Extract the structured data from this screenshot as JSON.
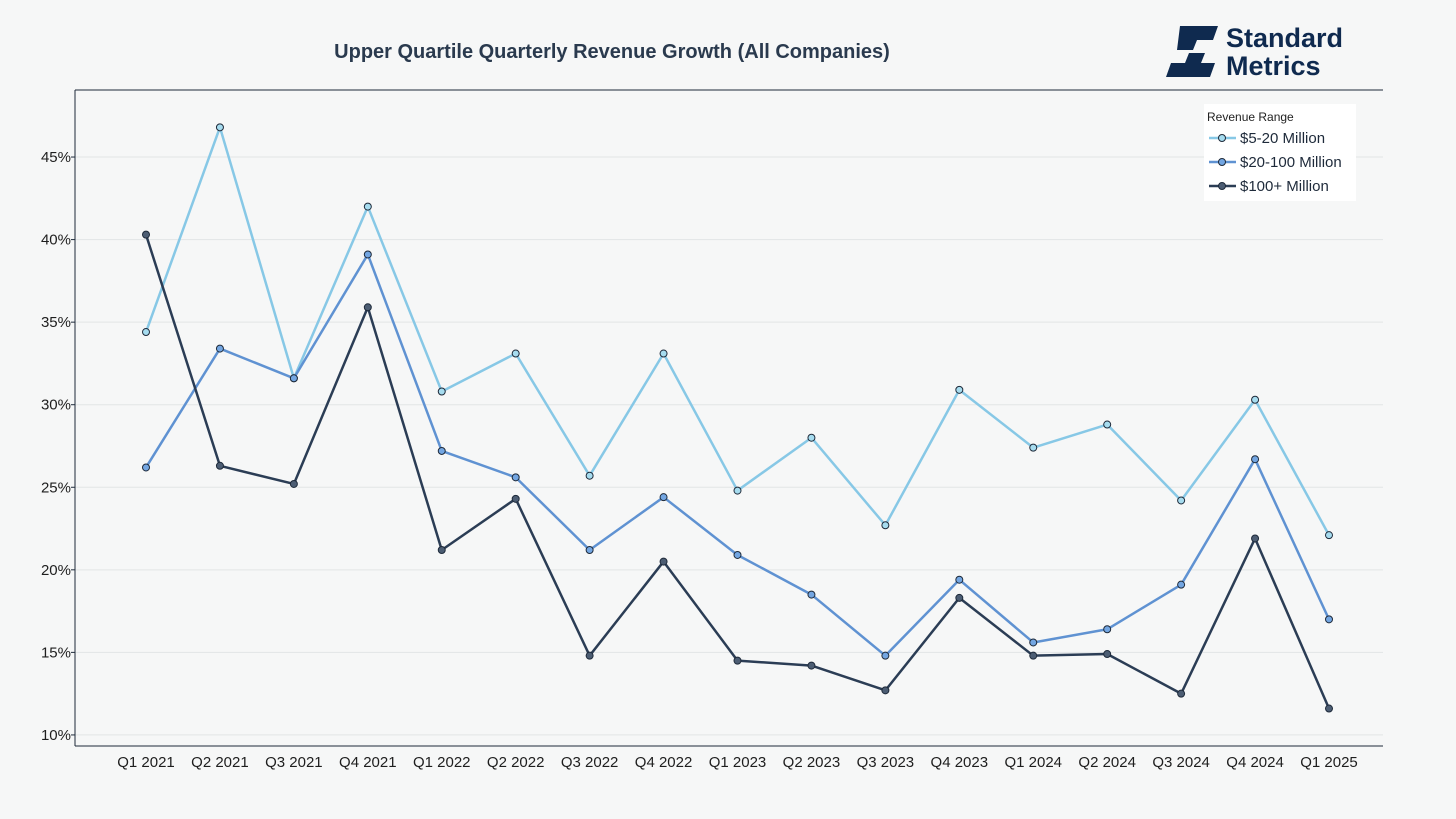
{
  "chart_data": {
    "type": "line",
    "title": "Upper Quartile Quarterly Revenue Growth (All Companies)",
    "xlabel": "",
    "ylabel": "",
    "ylim": [
      9.33,
      49.06
    ],
    "yticks": [
      10,
      15,
      20,
      25,
      30,
      35,
      40,
      45
    ],
    "ytick_labels": [
      "10%",
      "15%",
      "20%",
      "25%",
      "30%",
      "35%",
      "40%",
      "45%"
    ],
    "grid": true,
    "categories": [
      "Q1 2021",
      "Q2 2021",
      "Q3 2021",
      "Q4 2021",
      "Q1 2022",
      "Q2 2022",
      "Q3 2022",
      "Q4 2022",
      "Q1 2023",
      "Q2 2023",
      "Q3 2023",
      "Q4 2023",
      "Q1 2024",
      "Q2 2024",
      "Q3 2024",
      "Q4 2024",
      "Q1 2025"
    ],
    "legend": {
      "title": "Revenue Range",
      "placement": "top-right"
    },
    "series": [
      {
        "name": "$5-20 Million",
        "color": "#87c8e6",
        "marker": "#a6dcef",
        "values": [
          34.4,
          46.8,
          31.6,
          42.0,
          30.8,
          33.1,
          25.7,
          33.1,
          24.8,
          28.0,
          22.7,
          30.9,
          27.4,
          28.8,
          24.2,
          30.3,
          22.1
        ]
      },
      {
        "name": "$20-100 Million",
        "color": "#5f92d2",
        "marker": "#73a6e2",
        "values": [
          26.2,
          33.4,
          31.6,
          39.1,
          27.2,
          25.6,
          21.2,
          24.4,
          20.9,
          18.5,
          14.8,
          19.4,
          15.6,
          16.4,
          19.1,
          26.7,
          17.0
        ]
      },
      {
        "name": "$100+ Million",
        "color": "#2b3d55",
        "marker": "#4c5d73",
        "values": [
          40.3,
          26.3,
          25.2,
          35.9,
          21.2,
          24.3,
          14.8,
          20.5,
          14.5,
          14.2,
          12.7,
          18.3,
          14.8,
          14.9,
          12.5,
          21.9,
          11.6
        ]
      }
    ]
  },
  "logo": {
    "line1": "Standard",
    "line2": "Metrics"
  }
}
